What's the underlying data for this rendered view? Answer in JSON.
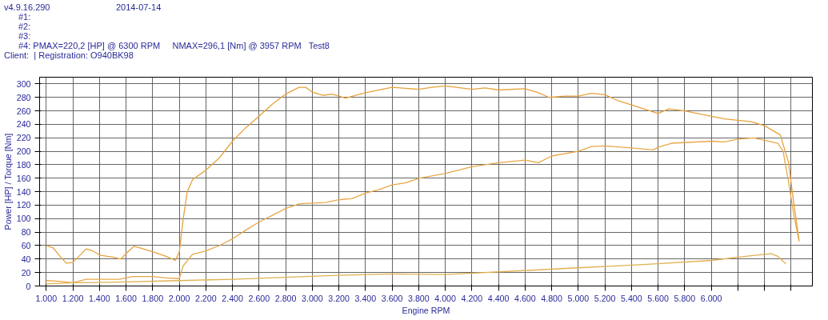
{
  "chart_data": {
    "type": "line",
    "annotations": [
      "v4.9.16.290",
      "2014-07-14",
      "#1:",
      "#2:",
      "#3:",
      "#4: PMAX=220,2 [HP] @ 6300 RPM     NMAX=296,1 [Nm] @ 3957 RPM   Test8",
      "Client:  | Registration: O940BK98"
    ],
    "xlabel": "Engine RPM",
    "ylabel": "Power [HP] / Torque [Nm]",
    "xlim": [
      950,
      6760
    ],
    "ylim": [
      0,
      310
    ],
    "xticks": [
      {
        "value": 1000,
        "label": "1.000"
      },
      {
        "value": 1200,
        "label": "1.200"
      },
      {
        "value": 1400,
        "label": "1.400"
      },
      {
        "value": 1600,
        "label": "1.600"
      },
      {
        "value": 1800,
        "label": "1.800"
      },
      {
        "value": 2000,
        "label": "2.000"
      },
      {
        "value": 2200,
        "label": "2.200"
      },
      {
        "value": 2400,
        "label": "2.400"
      },
      {
        "value": 2600,
        "label": "2.600"
      },
      {
        "value": 2800,
        "label": "2.800"
      },
      {
        "value": 3000,
        "label": "3.000"
      },
      {
        "value": 3200,
        "label": "3.200"
      },
      {
        "value": 3400,
        "label": "3.400"
      },
      {
        "value": 3600,
        "label": "3.600"
      },
      {
        "value": 3800,
        "label": "3.800"
      },
      {
        "value": 4000,
        "label": "4.000"
      },
      {
        "value": 4200,
        "label": "4.200"
      },
      {
        "value": 4400,
        "label": "4.400"
      },
      {
        "value": 4600,
        "label": "4.600"
      },
      {
        "value": 4800,
        "label": "4.800"
      },
      {
        "value": 5000,
        "label": "5.000"
      },
      {
        "value": 5200,
        "label": "5.200"
      },
      {
        "value": 5400,
        "label": "5.400"
      },
      {
        "value": 5600,
        "label": "5.600"
      },
      {
        "value": 5800,
        "label": "5.800"
      },
      {
        "value": 6000,
        "label": "6.000"
      },
      {
        "value": 6200,
        "label": null
      },
      {
        "value": 6400,
        "label": null
      },
      {
        "value": 6600,
        "label": null
      }
    ],
    "yticks": [
      0,
      20,
      40,
      60,
      80,
      100,
      120,
      140,
      160,
      180,
      200,
      220,
      240,
      260,
      280,
      300
    ],
    "grid": true,
    "series": [
      {
        "color": "#e6a23c",
        "x": [
          1000,
          1050,
          1100,
          1150,
          1200,
          1250,
          1300,
          1350,
          1400,
          1500,
          1560,
          1620,
          1660,
          1700,
          1800,
          1900,
          1970,
          2000,
          2030,
          2060,
          2100,
          2200,
          2300,
          2400,
          2500,
          2600,
          2700,
          2800,
          2900,
          2950,
          3000,
          3080,
          3150,
          3250,
          3400,
          3600,
          3800,
          3900,
          4000,
          4200,
          4300,
          4400,
          4600,
          4700,
          4780,
          4900,
          5000,
          5100,
          5200,
          5300,
          5400,
          5600,
          5680,
          5800,
          6000,
          6100,
          6200,
          6300,
          6400,
          6520,
          6540,
          6580,
          6620,
          6660
        ],
        "values": [
          60,
          57,
          45,
          34,
          35,
          45,
          55,
          52,
          46,
          43,
          40,
          52,
          59,
          57,
          51,
          44,
          38,
          50,
          100,
          140,
          158,
          172,
          190,
          215,
          235,
          252,
          270,
          285,
          295,
          295,
          288,
          283,
          285,
          279,
          287,
          295,
          292,
          295,
          297,
          292,
          294,
          291,
          293,
          287,
          280,
          282,
          282,
          286,
          284,
          275,
          269,
          256,
          263,
          260,
          252,
          248,
          246,
          244,
          238,
          224,
          210,
          184,
          123,
          68
        ]
      },
      {
        "color": "#e8a848",
        "x": [
          1000,
          1100,
          1200,
          1300,
          1400,
          1550,
          1650,
          1800,
          1900,
          2000,
          2030,
          2100,
          2200,
          2300,
          2400,
          2500,
          2600,
          2700,
          2800,
          2900,
          3000,
          3100,
          3200,
          3300,
          3400,
          3500,
          3600,
          3700,
          3800,
          4000,
          4200,
          4400,
          4600,
          4700,
          4800,
          5000,
          5100,
          5200,
          5400,
          5560,
          5600,
          5700,
          6000,
          6100,
          6200,
          6320,
          6500,
          6540,
          6580,
          6620,
          6660
        ],
        "values": [
          8,
          7,
          5,
          10,
          10,
          10,
          14,
          14,
          12,
          11,
          30,
          47,
          52,
          60,
          70,
          83,
          95,
          105,
          115,
          122,
          123,
          124,
          128,
          130,
          138,
          143,
          150,
          153,
          160,
          167,
          177,
          183,
          187,
          183,
          193,
          200,
          207,
          208,
          205,
          202,
          206,
          212,
          215,
          214,
          218,
          220,
          212,
          200,
          155,
          106,
          66
        ]
      },
      {
        "color": "#e0b050",
        "x": [
          1000,
          1200,
          1300,
          1600,
          2000,
          2400,
          2800,
          3200,
          3600,
          4000,
          5000,
          5600,
          6000,
          6300,
          6450,
          6500,
          6560
        ],
        "values": [
          3,
          5,
          5,
          6,
          8,
          10,
          13,
          16,
          18,
          17,
          27,
          33,
          38,
          45,
          48,
          44,
          33
        ]
      }
    ]
  }
}
